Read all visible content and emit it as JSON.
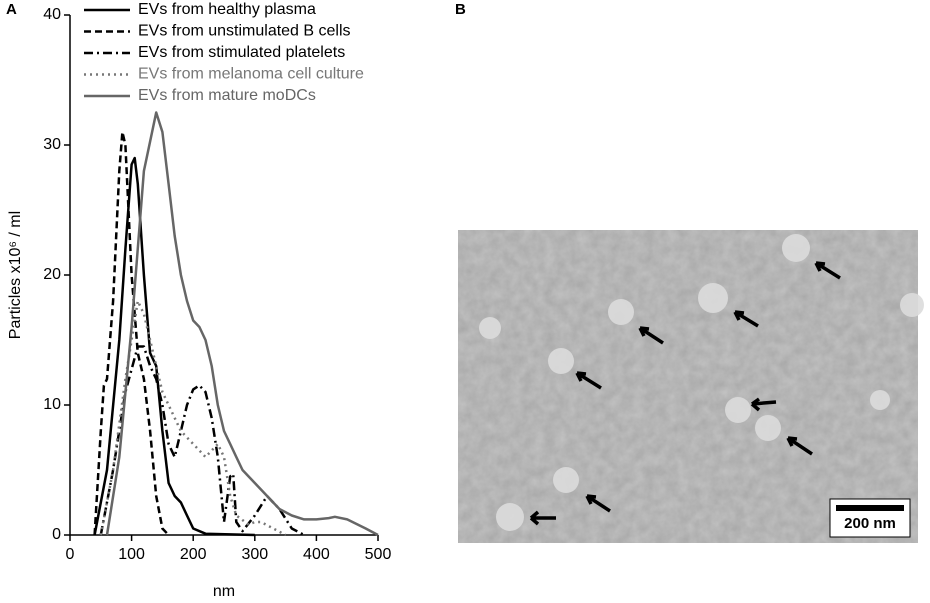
{
  "panel_labels": [
    "A",
    "B"
  ],
  "chart_data": {
    "type": "line",
    "x_label": "nm",
    "y_label": "Particles x10⁶ / ml",
    "xlim": [
      0,
      500
    ],
    "xticks": [
      0,
      100,
      200,
      300,
      400,
      500
    ],
    "ylim": [
      0,
      40
    ],
    "yticks": [
      0,
      10,
      20,
      30,
      40
    ],
    "grid": false,
    "legend": "top",
    "series": [
      {
        "name": "EVs from healthy plasma",
        "color": "#000000",
        "dash": "solid",
        "x": [
          40,
          60,
          80,
          90,
          100,
          105,
          110,
          120,
          130,
          140,
          150,
          160,
          170,
          180,
          190,
          200,
          220,
          300
        ],
        "values": [
          0,
          5,
          15,
          22,
          28.5,
          29,
          27,
          20,
          14,
          13,
          8,
          4,
          3,
          2.5,
          1.5,
          0.5,
          0.1,
          0
        ]
      },
      {
        "name": "EVs from unstimulated B cells",
        "color": "#000000",
        "dash": "dashed",
        "x": [
          40,
          50,
          55,
          60,
          70,
          80,
          85,
          90,
          100,
          110,
          120,
          130,
          140,
          150,
          160
        ],
        "values": [
          0,
          8,
          11.5,
          12,
          18,
          28,
          31,
          30,
          20,
          14,
          12,
          8,
          3,
          0.5,
          0
        ]
      },
      {
        "name": "EVs from stimulated platelets",
        "color": "#000000",
        "dash": "dashdot",
        "x": [
          50,
          70,
          90,
          110,
          120,
          130,
          140,
          150,
          160,
          170,
          180,
          190,
          200,
          210,
          220,
          230,
          240,
          250,
          260,
          265,
          270,
          280,
          300,
          320,
          340,
          360,
          380
        ],
        "values": [
          0,
          5,
          11,
          14.5,
          14.5,
          13,
          12,
          10,
          7,
          6,
          8,
          10,
          11.2,
          11.5,
          11,
          9,
          6,
          1,
          4.5,
          4.7,
          1,
          0.3,
          1.5,
          3,
          2,
          0.5,
          0
        ]
      },
      {
        "name": "EVs from melanoma cell culture",
        "color": "#777777",
        "dash": "dotted",
        "x": [
          50,
          70,
          90,
          110,
          120,
          130,
          140,
          150,
          160,
          170,
          180,
          190,
          200,
          210,
          220,
          230,
          240,
          250,
          260,
          270,
          290,
          300,
          310,
          330,
          350
        ],
        "values": [
          0,
          5,
          12,
          18,
          17,
          15,
          13,
          11,
          10,
          9,
          8,
          7.5,
          7,
          6.5,
          6,
          6.5,
          7,
          6,
          3,
          1.5,
          0.8,
          1,
          1,
          0.5,
          0
        ]
      },
      {
        "name": "EVs from mature moDCs",
        "color": "#666666",
        "dash": "solid",
        "x": [
          60,
          80,
          100,
          120,
          140,
          150,
          160,
          170,
          180,
          190,
          200,
          210,
          220,
          230,
          240,
          250,
          260,
          270,
          280,
          300,
          320,
          340,
          360,
          380,
          400,
          420,
          430,
          450,
          480,
          500
        ],
        "values": [
          0,
          6,
          16,
          28,
          32.5,
          31,
          27,
          23,
          20,
          18,
          16.5,
          16,
          15,
          13,
          10,
          8,
          7,
          6,
          5,
          4,
          3,
          2,
          1.5,
          1.2,
          1.2,
          1.3,
          1.4,
          1.2,
          0.5,
          0
        ]
      }
    ]
  },
  "image": {
    "scale_bar": "200 nm"
  }
}
